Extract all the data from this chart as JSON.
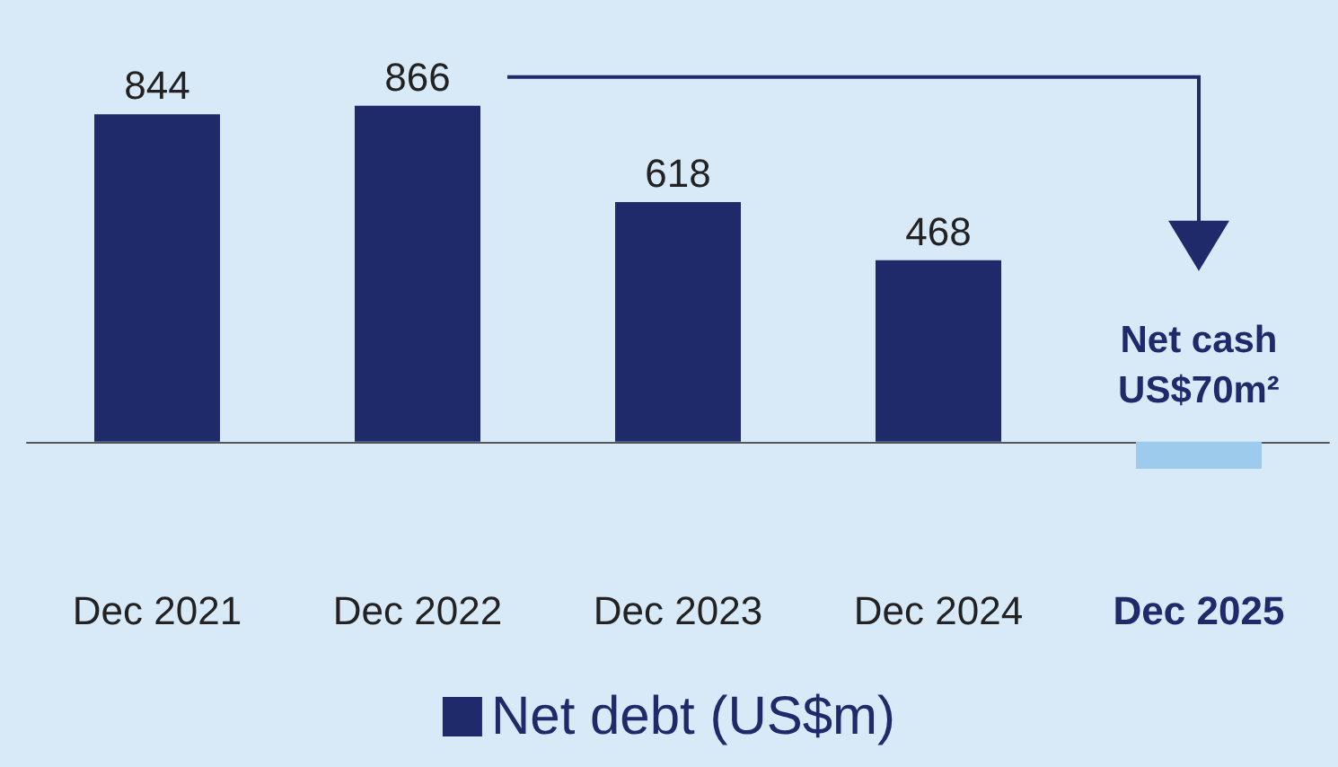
{
  "chart_data": {
    "type": "bar",
    "categories": [
      "Dec 2021",
      "Dec 2022",
      "Dec 2023",
      "Dec 2024",
      "Dec 2025"
    ],
    "series": [
      {
        "name": "Net debt (US$m)",
        "color": "#1f2a6b",
        "colors": [
          "#1f2a6b",
          "#1f2a6b",
          "#1f2a6b",
          "#1f2a6b",
          "#9ccbec"
        ],
        "values": [
          844,
          866,
          618,
          468,
          -70
        ],
        "value_labels": [
          "844",
          "866",
          "618",
          "468",
          null
        ]
      }
    ],
    "annotations": [
      "Net cash US$70m²"
    ],
    "legend": "bottom"
  }
}
